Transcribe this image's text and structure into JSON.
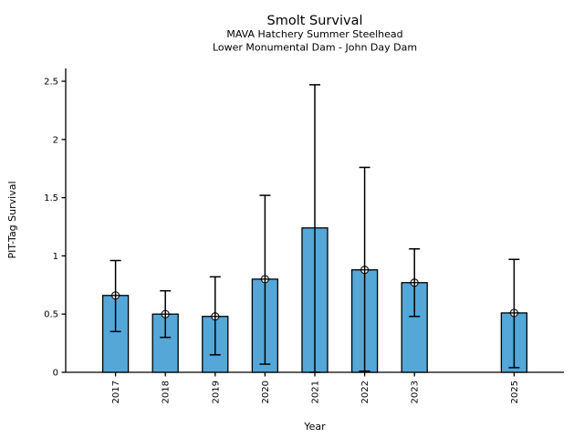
{
  "chart_data": {
    "type": "bar",
    "title": "Smolt Survival",
    "subtitle": [
      "MAVA Hatchery Summer Steelhead",
      "Lower Monumental Dam - John Day Dam"
    ],
    "xlabel": "Year",
    "ylabel": "PIT-Tag Survival",
    "categories": [
      2017,
      2018,
      2019,
      2020,
      2021,
      2022,
      2023,
      2025
    ],
    "values": [
      0.66,
      0.5,
      0.48,
      0.8,
      1.24,
      0.88,
      0.77,
      0.51
    ],
    "error_low": [
      0.35,
      0.3,
      0.15,
      0.07,
      0.0,
      0.01,
      0.48,
      0.04
    ],
    "error_high": [
      0.96,
      0.7,
      0.82,
      1.52,
      2.47,
      1.76,
      1.06,
      0.97
    ],
    "point_markers": [
      true,
      true,
      true,
      true,
      false,
      true,
      true,
      true
    ],
    "yticks": [
      0,
      0.5,
      1,
      1.5,
      2,
      2.5
    ],
    "ylim": [
      0,
      2.61
    ],
    "x_range": [
      2016,
      2026
    ],
    "grid": false,
    "legend": null,
    "colors": {
      "bar_fill": "#54a7d7",
      "bar_edge": "#000000",
      "error_bar": "#000000",
      "marker_fill": "#ffffff",
      "marker_edge": "#1a1a1a",
      "axis": "#000000",
      "text": "#000000",
      "background": "#ffffff"
    }
  }
}
